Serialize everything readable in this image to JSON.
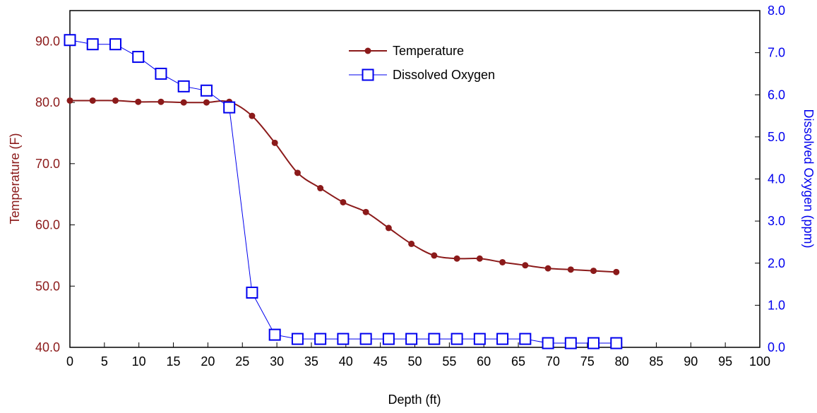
{
  "chart_data": {
    "type": "line",
    "xlabel": "Depth (ft)",
    "ylabel_left": "Temperature (F)",
    "ylabel_right": "Dissolved Oxygen (ppm)",
    "xlim": [
      0,
      100
    ],
    "xticks": [
      0,
      5,
      10,
      15,
      20,
      25,
      30,
      35,
      40,
      45,
      50,
      55,
      60,
      65,
      70,
      75,
      80,
      85,
      90,
      95,
      100
    ],
    "ylim_left": [
      40,
      95
    ],
    "yticks_left": [
      "40.0",
      "50.0",
      "60.0",
      "70.0",
      "80.0",
      "90.0"
    ],
    "ylim_right": [
      0,
      8
    ],
    "yticks_right": [
      "0.0",
      "1.0",
      "2.0",
      "3.0",
      "4.0",
      "5.0",
      "6.0",
      "7.0",
      "8.0"
    ],
    "grid": false,
    "legend": "top-center",
    "colors": {
      "temperature": "#8b1a1a",
      "oxygen": "#0000ee",
      "axis_left": "#8b1a1a",
      "axis_right": "#0000ee"
    },
    "x": [
      0,
      3.3,
      6.6,
      9.9,
      13.2,
      16.5,
      19.8,
      23.1,
      26.4,
      29.7,
      33,
      36.3,
      39.6,
      42.9,
      46.2,
      49.5,
      52.8,
      56.1,
      59.4,
      62.7,
      66,
      69.3,
      72.6,
      75.9,
      79.2
    ],
    "series": [
      {
        "name": "Temperature",
        "axis": "left",
        "marker": "circle",
        "values": [
          80.3,
          80.3,
          80.3,
          80.1,
          80.1,
          80.0,
          80.0,
          80.1,
          77.8,
          73.4,
          68.5,
          66.0,
          63.7,
          62.1,
          59.5,
          56.9,
          55.0,
          54.5,
          54.5,
          53.9,
          53.4,
          52.9,
          52.7,
          52.5,
          52.3
        ]
      },
      {
        "name": "Dissolved Oxygen",
        "axis": "right",
        "marker": "square",
        "values": [
          7.3,
          7.2,
          7.2,
          6.9,
          6.5,
          6.2,
          6.1,
          5.7,
          1.3,
          0.3,
          0.2,
          0.2,
          0.2,
          0.2,
          0.2,
          0.2,
          0.2,
          0.2,
          0.2,
          0.2,
          0.2,
          0.1,
          0.1,
          0.1,
          0.1
        ]
      }
    ]
  }
}
